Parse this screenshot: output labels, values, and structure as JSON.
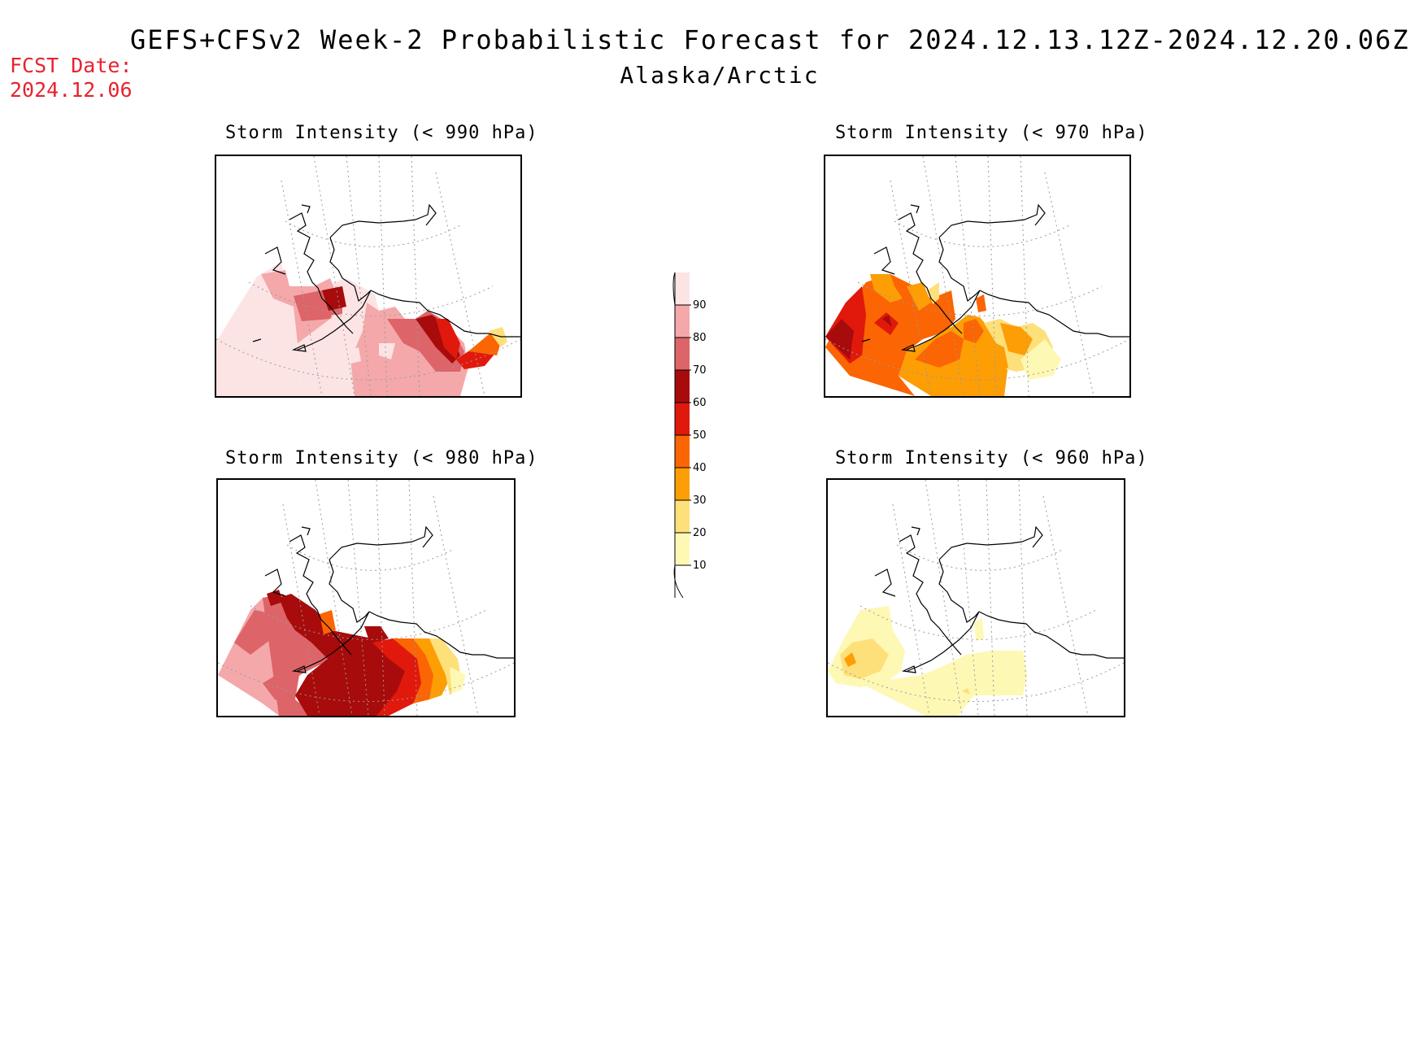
{
  "header": {
    "title": "GEFS+CFSv2 Week-2 Probabilistic Forecast for 2024.12.13.12Z-2024.12.20.06Z",
    "subtitle": "Alaska/Arctic",
    "fcst_label": "FCST Date:",
    "fcst_date": "2024.12.06"
  },
  "panels": [
    {
      "id": "p990",
      "title": "Storm Intensity (< 990 hPa)",
      "dominant_bins": [
        "90",
        "80",
        "70",
        "60",
        "50",
        "40",
        "30"
      ]
    },
    {
      "id": "p970",
      "title": "Storm Intensity (< 970 hPa)",
      "dominant_bins": [
        "70",
        "60",
        "50",
        "40",
        "30",
        "20",
        "10"
      ]
    },
    {
      "id": "p980",
      "title": "Storm Intensity (< 980 hPa)",
      "dominant_bins": [
        "90",
        "80",
        "70",
        "60",
        "50",
        "40",
        "30",
        "20"
      ]
    },
    {
      "id": "p960",
      "title": "Storm Intensity (< 960 hPa)",
      "dominant_bins": [
        "40",
        "30",
        "20",
        "10"
      ]
    }
  ],
  "colorbar": {
    "labels": [
      "90",
      "80",
      "70",
      "60",
      "50",
      "40",
      "30",
      "20",
      "10"
    ],
    "colors": {
      "100": "#fde4e4",
      "90": "#f4a8aa",
      "80": "#dd6468",
      "70": "#a80b0b",
      "60": "#e0190c",
      "50": "#fb6503",
      "40": "#fd9e05",
      "30": "#fde07a",
      "20": "#fef8b5",
      "10": "#ffffff"
    }
  }
}
